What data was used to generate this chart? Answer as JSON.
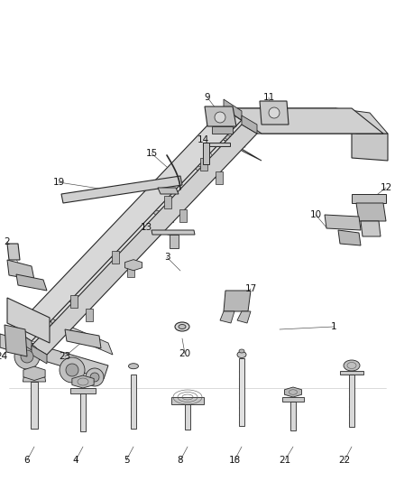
{
  "bg_color": "#ffffff",
  "fig_width": 4.38,
  "fig_height": 5.33,
  "dpi": 100,
  "line_color": "#2a2a2a",
  "label_color": "#111111",
  "label_fontsize": 7.5,
  "frame_fill": "#d4d4d4",
  "frame_fill2": "#bebebe",
  "frame_fill3": "#c8c8c8",
  "dark_fill": "#909090"
}
